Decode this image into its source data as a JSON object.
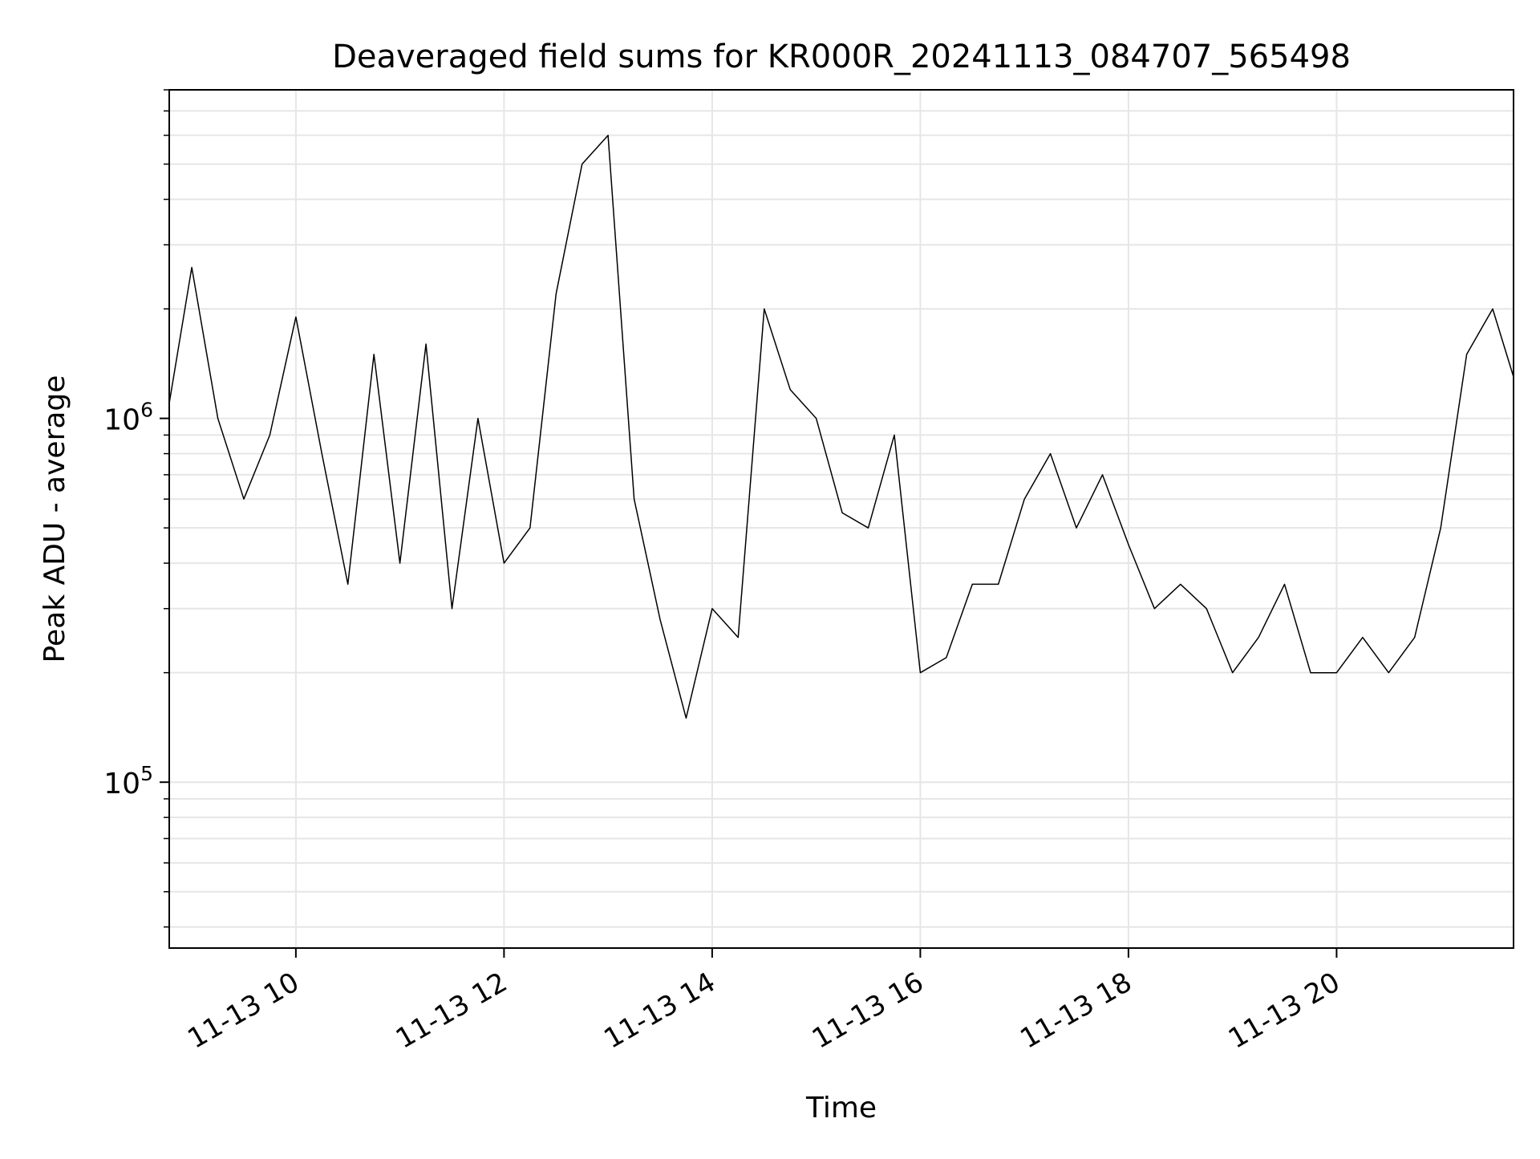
{
  "chart_data": {
    "type": "line",
    "title": "Deaveraged field sums for KR000R_20241113_084707_565498",
    "xlabel": "Time",
    "ylabel": "Peak ADU - average",
    "x_tick_labels": [
      "11-13 10",
      "11-13 12",
      "11-13 14",
      "11-13 16",
      "11-13 18",
      "11-13 20"
    ],
    "x_tick_times": [
      "2024-11-13T10:00",
      "2024-11-13T12:00",
      "2024-11-13T14:00",
      "2024-11-13T16:00",
      "2024-11-13T18:00",
      "2024-11-13T20:00"
    ],
    "y_tick_labels": [
      {
        "base": "10",
        "exp": "5",
        "value": 100000
      },
      {
        "base": "10",
        "exp": "6",
        "value": 1000000
      }
    ],
    "yscale": "log",
    "xlim": [
      "2024-11-13T08:47",
      "2024-11-13T21:42"
    ],
    "ylim": [
      35000,
      8000000
    ],
    "grid": true,
    "line_color": "#000000",
    "series": [
      {
        "x": [
          "2024-11-13T08:47",
          "2024-11-13T09:00",
          "2024-11-13T09:15",
          "2024-11-13T09:30",
          "2024-11-13T09:45",
          "2024-11-13T10:00",
          "2024-11-13T10:15",
          "2024-11-13T10:30",
          "2024-11-13T10:45",
          "2024-11-13T11:00",
          "2024-11-13T11:15",
          "2024-11-13T11:30",
          "2024-11-13T11:45",
          "2024-11-13T12:00",
          "2024-11-13T12:15",
          "2024-11-13T12:30",
          "2024-11-13T12:45",
          "2024-11-13T13:00",
          "2024-11-13T13:15",
          "2024-11-13T13:30",
          "2024-11-13T13:45",
          "2024-11-13T14:00",
          "2024-11-13T14:15",
          "2024-11-13T14:30",
          "2024-11-13T14:45",
          "2024-11-13T15:00",
          "2024-11-13T15:15",
          "2024-11-13T15:30",
          "2024-11-13T15:45",
          "2024-11-13T16:00",
          "2024-11-13T16:15",
          "2024-11-13T16:30",
          "2024-11-13T16:45",
          "2024-11-13T17:00",
          "2024-11-13T17:15",
          "2024-11-13T17:30",
          "2024-11-13T17:45",
          "2024-11-13T18:00",
          "2024-11-13T18:15",
          "2024-11-13T18:30",
          "2024-11-13T18:45",
          "2024-11-13T19:00",
          "2024-11-13T19:15",
          "2024-11-13T19:30",
          "2024-11-13T19:45",
          "2024-11-13T20:00",
          "2024-11-13T20:15",
          "2024-11-13T20:30",
          "2024-11-13T20:45",
          "2024-11-13T21:00",
          "2024-11-13T21:15",
          "2024-11-13T21:30",
          "2024-11-13T21:42"
        ],
        "y": [
          1100000,
          2600000,
          1000000,
          600000,
          900000,
          1900000,
          800000,
          350000,
          1500000,
          400000,
          1600000,
          300000,
          1000000,
          400000,
          500000,
          2200000,
          5000000,
          6000000,
          600000,
          280000,
          150000,
          300000,
          250000,
          2000000,
          1200000,
          1000000,
          550000,
          500000,
          900000,
          200000,
          220000,
          350000,
          350000,
          600000,
          800000,
          500000,
          700000,
          450000,
          300000,
          350000,
          300000,
          200000,
          250000,
          350000,
          200000,
          200000,
          250000,
          200000,
          250000,
          500000,
          1500000,
          2000000,
          1300000
        ]
      }
    ]
  }
}
